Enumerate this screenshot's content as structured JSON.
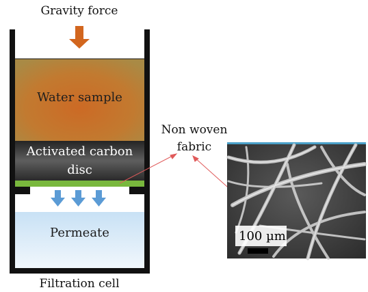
{
  "title": "Gravity force",
  "caption": "Filtration cell",
  "layers": {
    "water": "Water sample",
    "carbon": "Activated carbon disc",
    "permeate": "Permeate"
  },
  "fabric_label": "Non woven fabric",
  "scale_bar": "100 µm",
  "colors": {
    "arrow_force": "#d2661e",
    "water_top": "#b98b3e",
    "water_bottom": "#c86a22",
    "carbon_top": "#1e1e1e",
    "carbon_mid": "#5a5a5a",
    "fabric_strip": "#79b83d",
    "permeate_top": "#cfe5f7",
    "permeate_bottom": "#eef6fc",
    "flow_arrow": "#5b9bd5",
    "pointer_line": "#e05a5a"
  },
  "icons": [
    "gravity-arrow-icon",
    "flow-arrow-icon"
  ]
}
